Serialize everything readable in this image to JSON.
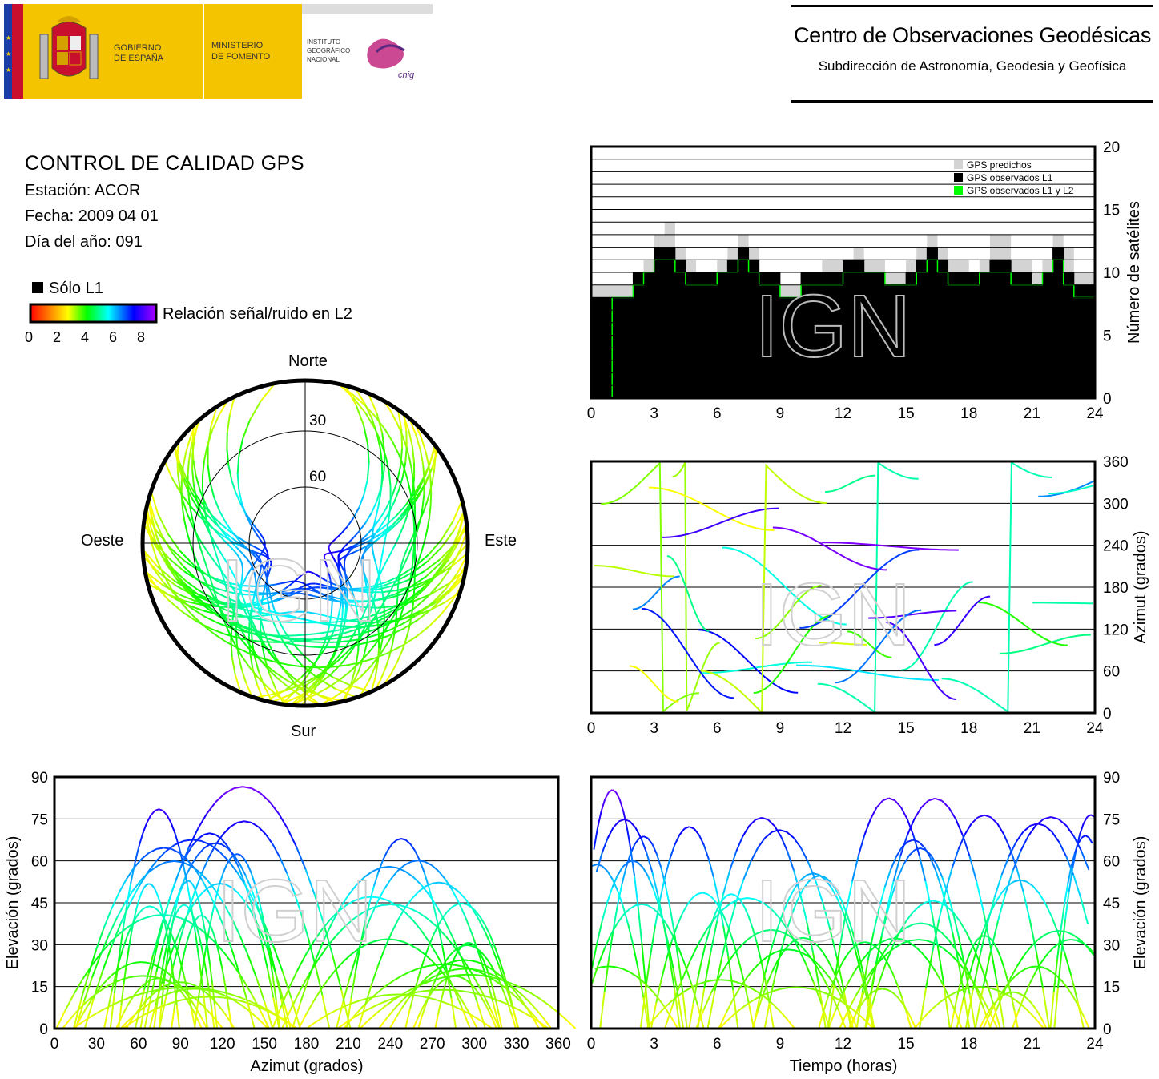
{
  "header": {
    "gov_line1": "GOBIERNO",
    "gov_line2": "DE ESPAÑA",
    "min_line1": "MINISTERIO",
    "min_line2": "DE FOMENTO",
    "inst_line1": "INSTITUTO",
    "inst_line2": "GEOGRÁFICO",
    "inst_line3": "NACIONAL",
    "cnig": "cnig",
    "center_title": "Centro de Observaciones Geodésicas",
    "center_sub": "Subdirección de Astronomía, Geodesia y Geofísica"
  },
  "info": {
    "title": "CONTROL DE CALIDAD GPS",
    "station": "Estación: ACOR",
    "date": "Fecha: 2009 04 01",
    "doy": "Día del año: 091"
  },
  "legend": {
    "solo_l1": "Sólo L1",
    "snr_label": "Relación señal/ruido en L2",
    "ticks": [
      "0",
      "2",
      "4",
      "6",
      "8"
    ],
    "colors": [
      "#ff0000",
      "#ff8800",
      "#ffff00",
      "#00ff00",
      "#00ffff",
      "#0000ff",
      "#aa00ff"
    ]
  },
  "watermark": "IGN",
  "chart_data": [
    {
      "type": "area",
      "name": "satellites-count",
      "x_range": [
        0,
        24
      ],
      "ylim": [
        0,
        20
      ],
      "xticks": [
        "0",
        "3",
        "6",
        "9",
        "12",
        "15",
        "18",
        "21",
        "24"
      ],
      "yticks": [
        "0",
        "5",
        "10",
        "15",
        "20"
      ],
      "ylabel": "Número de satélites",
      "series": [
        {
          "name": "GPS predichos",
          "color": "#d3d3d3",
          "x": [
            0,
            1,
            2,
            2.5,
            3,
            3.5,
            4,
            4.5,
            5,
            6,
            6.5,
            7,
            7.5,
            8,
            9,
            10,
            11,
            12,
            12.5,
            13,
            14,
            15,
            15.5,
            16,
            16.5,
            17,
            18,
            18.5,
            19,
            20,
            21,
            21.5,
            22,
            22.5,
            23,
            24
          ],
          "values": [
            9,
            9,
            10,
            11,
            13,
            14,
            12,
            11,
            10,
            11,
            12,
            13,
            12,
            10,
            9,
            10,
            11,
            11,
            12,
            11,
            10,
            11,
            12,
            13,
            12,
            11,
            10,
            11,
            13,
            11,
            10,
            11,
            13,
            12,
            10,
            9
          ]
        },
        {
          "name": "GPS observados L1",
          "color": "#000000",
          "x": [
            0,
            1,
            2,
            2.5,
            3,
            3.5,
            4,
            4.5,
            5,
            6,
            6.5,
            7,
            7.5,
            8,
            9,
            10,
            11,
            12,
            12.5,
            13,
            14,
            15,
            15.5,
            16,
            16.5,
            17,
            18,
            18.5,
            19,
            20,
            21,
            21.5,
            22,
            22.5,
            23,
            24
          ],
          "values": [
            8,
            8,
            10,
            10,
            12,
            12,
            11,
            10,
            10,
            10,
            11,
            12,
            11,
            10,
            8,
            10,
            10,
            11,
            11,
            10,
            9,
            10,
            11,
            12,
            11,
            10,
            10,
            10,
            11,
            10,
            9,
            10,
            12,
            10,
            9,
            8
          ]
        },
        {
          "name": "GPS observados L1 y L2",
          "color": "#00ff00",
          "x": [
            0,
            1,
            2,
            2.5,
            3,
            3.5,
            4,
            4.5,
            5,
            6,
            6.5,
            7,
            7.5,
            8,
            9,
            10,
            11,
            12,
            12.5,
            13,
            14,
            15,
            15.5,
            16,
            16.5,
            17,
            18,
            18.5,
            19,
            20,
            21,
            21.5,
            22,
            22.5,
            23,
            24
          ],
          "values": [
            0,
            8,
            9,
            10,
            11,
            11,
            10,
            9,
            9,
            10,
            10,
            11,
            10,
            9,
            8,
            9,
            9,
            10,
            10,
            10,
            9,
            9,
            10,
            11,
            10,
            9,
            9,
            10,
            10,
            9,
            9,
            10,
            11,
            9,
            8,
            8
          ]
        }
      ]
    },
    {
      "type": "scatter",
      "name": "azimuth-vs-time",
      "x_range": [
        0,
        24
      ],
      "ylim": [
        0,
        360
      ],
      "xticks": [
        "0",
        "3",
        "6",
        "9",
        "12",
        "15",
        "18",
        "21",
        "24"
      ],
      "yticks": [
        "0",
        "60",
        "120",
        "180",
        "240",
        "300",
        "360"
      ],
      "ylabel": "Azimut (grados)"
    },
    {
      "type": "scatter",
      "name": "elevation-vs-azimuth",
      "x_range": [
        0,
        360
      ],
      "ylim": [
        0,
        90
      ],
      "xticks": [
        "0",
        "30",
        "60",
        "90",
        "120",
        "150",
        "180",
        "210",
        "240",
        "270",
        "300",
        "330",
        "360"
      ],
      "yticks": [
        "0",
        "15",
        "30",
        "45",
        "60",
        "75",
        "90"
      ],
      "xlabel": "Azimut (grados)",
      "ylabel": "Elevación (grados)"
    },
    {
      "type": "scatter",
      "name": "elevation-vs-time",
      "x_range": [
        0,
        24
      ],
      "ylim": [
        0,
        90
      ],
      "xticks": [
        "0",
        "3",
        "6",
        "9",
        "12",
        "15",
        "18",
        "21",
        "24"
      ],
      "yticks": [
        "0",
        "15",
        "30",
        "45",
        "60",
        "75",
        "90"
      ],
      "xlabel": "Tiempo (horas)",
      "ylabel": "Elevación (grados)"
    },
    {
      "type": "scatter",
      "name": "skyplot",
      "labels": {
        "north": "Norte",
        "south": "Sur",
        "east": "Este",
        "west": "Oeste"
      },
      "rings": [
        "30",
        "60"
      ]
    }
  ]
}
